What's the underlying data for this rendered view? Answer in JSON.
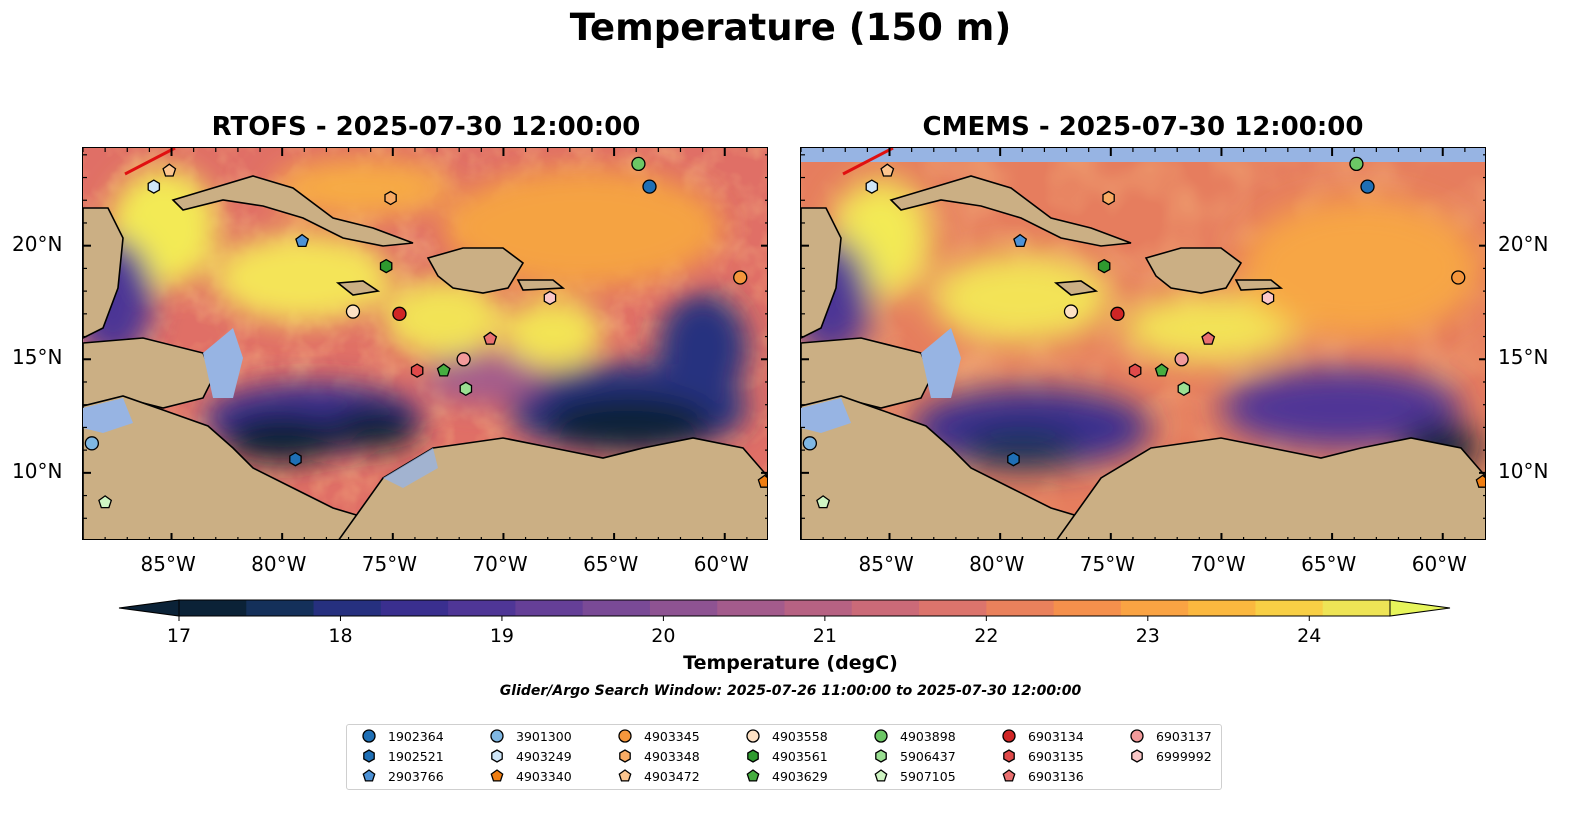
{
  "figure": {
    "title": "Temperature (150 m)",
    "window_note": "Glider/Argo Search Window: 2025-07-26 11:00:00 to 2025-07-30 12:00:00"
  },
  "panels": [
    {
      "title": "RTOFS - 2025-07-30 12:00:00",
      "model": "RTOFS"
    },
    {
      "title": "CMEMS - 2025-07-30 12:00:00",
      "model": "CMEMS"
    }
  ],
  "axes": {
    "lon_ticks": [
      -85,
      -80,
      -75,
      -70,
      -65,
      -60
    ],
    "lon_labels": [
      "85°W",
      "80°W",
      "75°W",
      "70°W",
      "65°W",
      "60°W"
    ],
    "lat_ticks": [
      20,
      15,
      10
    ],
    "lat_labels": [
      "20°N",
      "15°N",
      "10°N"
    ],
    "lon_range": [
      -89,
      -58
    ],
    "lat_range": [
      7,
      24.3
    ]
  },
  "colorbar": {
    "title": "Temperature (degC)",
    "ticks": [
      "17",
      "18",
      "19",
      "20",
      "21",
      "22",
      "23",
      "24"
    ],
    "min": 17,
    "max": 24.5,
    "step": 0.5,
    "extend": "both",
    "colors": [
      "#0b2237",
      "#14305a",
      "#26307f",
      "#3a2f8f",
      "#4f3696",
      "#653f97",
      "#7a4a96",
      "#8e5392",
      "#a35b8c",
      "#b76283",
      "#cb6a78",
      "#dc746c",
      "#ea815c",
      "#f5904c",
      "#faa343",
      "#fbb83f",
      "#f8cf45",
      "#eee456"
    ],
    "extend_low_color": "#0b2237",
    "extend_high_color": "#e7f55b"
  },
  "legend": {
    "columns": [
      [
        {
          "id": "1902364",
          "marker": "circle",
          "color": "#1f6fb5"
        },
        {
          "id": "1902521",
          "marker": "hexagon",
          "color": "#1f6fb5"
        },
        {
          "id": "2903766",
          "marker": "pentagon",
          "color": "#4d92d6"
        }
      ],
      [
        {
          "id": "3901300",
          "marker": "circle",
          "color": "#7fb7e3"
        },
        {
          "id": "4903249",
          "marker": "hexagon",
          "color": "#cfe6f8"
        },
        {
          "id": "4903340",
          "marker": "pentagon",
          "color": "#f07e12"
        }
      ],
      [
        {
          "id": "4903345",
          "marker": "circle",
          "color": "#f4963c"
        },
        {
          "id": "4903348",
          "marker": "hexagon",
          "color": "#f8ab64"
        },
        {
          "id": "4903472",
          "marker": "pentagon",
          "color": "#fcc58e"
        }
      ],
      [
        {
          "id": "4903558",
          "marker": "circle",
          "color": "#fde1c4"
        },
        {
          "id": "4903561",
          "marker": "hexagon",
          "color": "#2f9a2f"
        },
        {
          "id": "4903629",
          "marker": "pentagon",
          "color": "#46ad40"
        }
      ],
      [
        {
          "id": "4903898",
          "marker": "circle",
          "color": "#6cc765"
        },
        {
          "id": "5906437",
          "marker": "hexagon",
          "color": "#9adf92"
        },
        {
          "id": "5907105",
          "marker": "pentagon",
          "color": "#cff5c3"
        }
      ],
      [
        {
          "id": "6903134",
          "marker": "circle",
          "color": "#d02525"
        },
        {
          "id": "6903135",
          "marker": "hexagon",
          "color": "#e04a4a"
        },
        {
          "id": "6903136",
          "marker": "pentagon",
          "color": "#ea7070"
        }
      ],
      [
        {
          "id": "6903137",
          "marker": "circle",
          "color": "#f29a9a"
        },
        {
          "id": "6999992",
          "marker": "hexagon",
          "color": "#fbc8c8"
        }
      ]
    ]
  },
  "observations": [
    {
      "id": "1902364",
      "lon": -63.4,
      "lat": 22.6
    },
    {
      "id": "1902521",
      "lon": -79.4,
      "lat": 10.6
    },
    {
      "id": "2903766",
      "lon": -79.1,
      "lat": 20.2
    },
    {
      "id": "3901300",
      "lon": -88.6,
      "lat": 11.3
    },
    {
      "id": "4903249",
      "lon": -85.8,
      "lat": 22.6
    },
    {
      "id": "4903340",
      "lon": -58.2,
      "lat": 9.6
    },
    {
      "id": "4903345",
      "lon": -59.3,
      "lat": 18.6
    },
    {
      "id": "4903348",
      "lon": -75.1,
      "lat": 22.1
    },
    {
      "id": "4903472",
      "lon": -85.1,
      "lat": 23.3
    },
    {
      "id": "4903558",
      "lon": -76.8,
      "lat": 17.1
    },
    {
      "id": "4903561",
      "lon": -75.3,
      "lat": 19.1
    },
    {
      "id": "4903629",
      "lon": -72.7,
      "lat": 14.5
    },
    {
      "id": "4903898",
      "lon": -63.9,
      "lat": 23.6
    },
    {
      "id": "5906437",
      "lon": -71.7,
      "lat": 13.7
    },
    {
      "id": "5907105",
      "lon": -88.0,
      "lat": 8.7
    },
    {
      "id": "6903134",
      "lon": -74.7,
      "lat": 17.0
    },
    {
      "id": "6903135",
      "lon": -73.9,
      "lat": 14.5
    },
    {
      "id": "6903136",
      "lon": -70.6,
      "lat": 15.9
    },
    {
      "id": "6903137",
      "lon": -71.8,
      "lat": 15.0
    },
    {
      "id": "6999992",
      "lon": -67.9,
      "lat": 17.7
    }
  ]
}
